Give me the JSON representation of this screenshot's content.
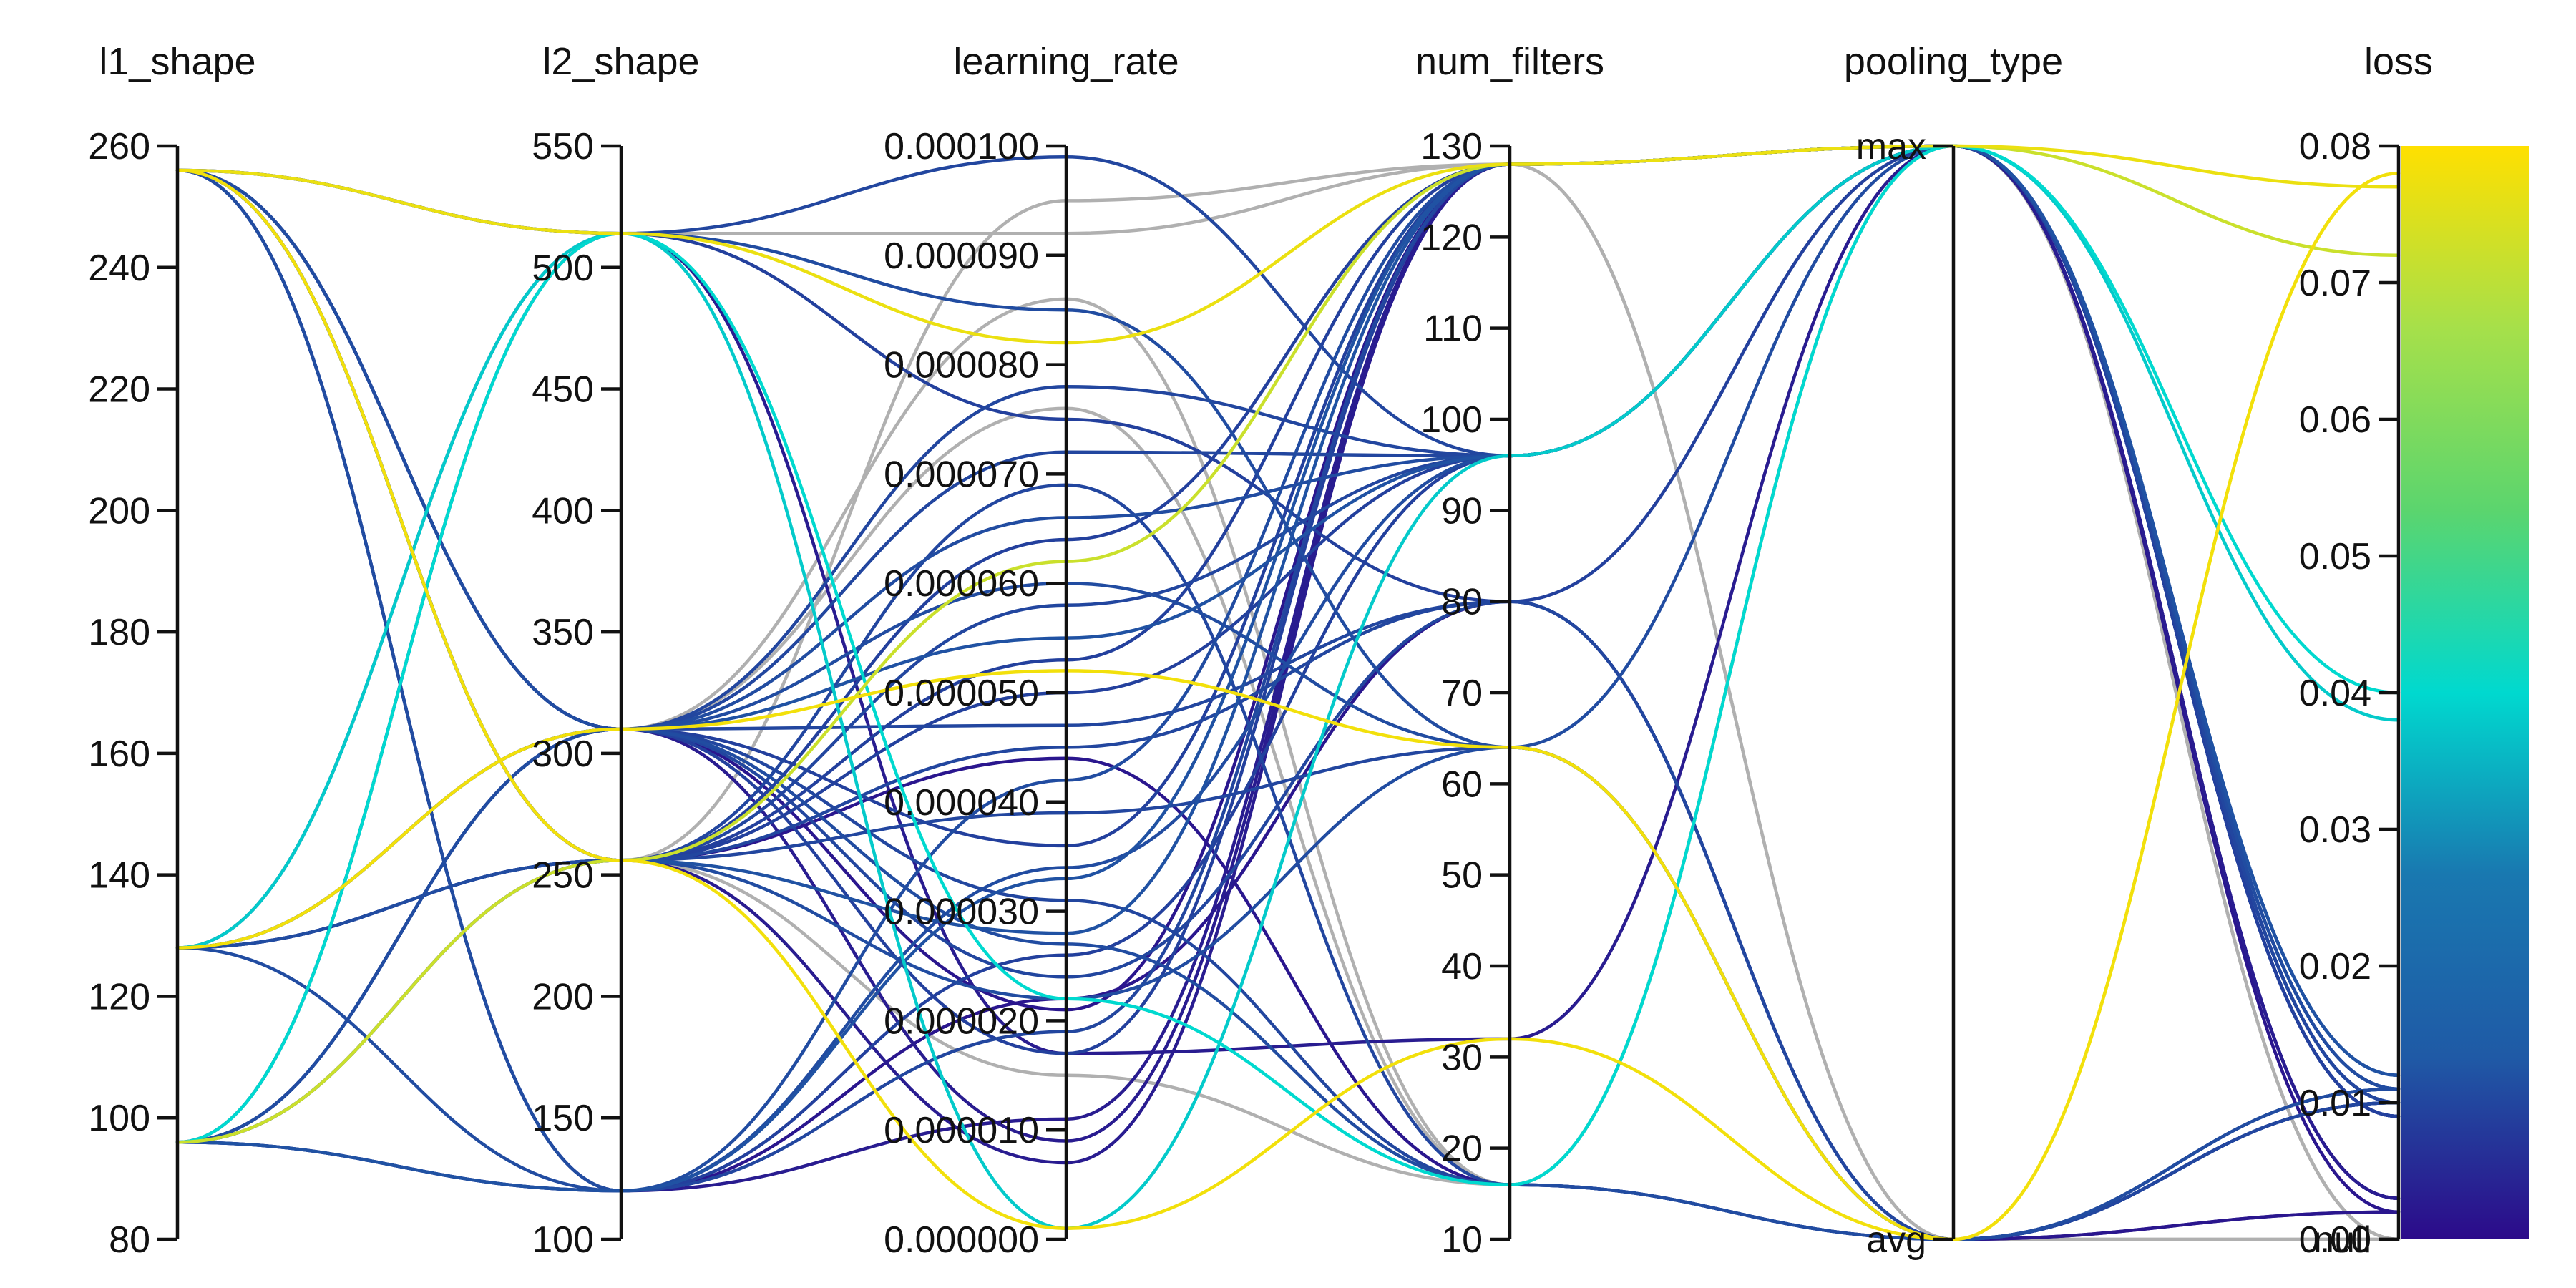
{
  "chart_data": {
    "type": "parallel_coordinates",
    "axes": [
      {
        "key": "l1_shape",
        "label": "l1_shape",
        "kind": "numeric",
        "range": [
          80,
          260
        ],
        "ticks": [
          {
            "v": 80,
            "t": "80"
          },
          {
            "v": 100,
            "t": "100"
          },
          {
            "v": 120,
            "t": "120"
          },
          {
            "v": 140,
            "t": "140"
          },
          {
            "v": 160,
            "t": "160"
          },
          {
            "v": 180,
            "t": "180"
          },
          {
            "v": 200,
            "t": "200"
          },
          {
            "v": 220,
            "t": "220"
          },
          {
            "v": 240,
            "t": "240"
          },
          {
            "v": 260,
            "t": "260"
          }
        ]
      },
      {
        "key": "l2_shape",
        "label": "l2_shape",
        "kind": "numeric",
        "range": [
          100,
          550
        ],
        "ticks": [
          {
            "v": 100,
            "t": "100"
          },
          {
            "v": 150,
            "t": "150"
          },
          {
            "v": 200,
            "t": "200"
          },
          {
            "v": 250,
            "t": "250"
          },
          {
            "v": 300,
            "t": "300"
          },
          {
            "v": 350,
            "t": "350"
          },
          {
            "v": 400,
            "t": "400"
          },
          {
            "v": 450,
            "t": "450"
          },
          {
            "v": 500,
            "t": "500"
          },
          {
            "v": 550,
            "t": "550"
          }
        ]
      },
      {
        "key": "learning_rate",
        "label": "learning_rate",
        "kind": "numeric",
        "range": [
          0,
          0.0001
        ],
        "ticks": [
          {
            "v": 0,
            "t": "0.000000"
          },
          {
            "v": 1e-05,
            "t": "0.000010"
          },
          {
            "v": 2e-05,
            "t": "0.000020"
          },
          {
            "v": 3e-05,
            "t": "0.000030"
          },
          {
            "v": 4e-05,
            "t": "0.000040"
          },
          {
            "v": 5e-05,
            "t": "0.000050"
          },
          {
            "v": 6e-05,
            "t": "0.000060"
          },
          {
            "v": 7e-05,
            "t": "0.000070"
          },
          {
            "v": 8e-05,
            "t": "0.000080"
          },
          {
            "v": 9e-05,
            "t": "0.000090"
          },
          {
            "v": 0.0001,
            "t": "0.000100"
          }
        ]
      },
      {
        "key": "num_filters",
        "label": "num_filters",
        "kind": "numeric",
        "range": [
          10,
          130
        ],
        "ticks": [
          {
            "v": 10,
            "t": "10"
          },
          {
            "v": 20,
            "t": "20"
          },
          {
            "v": 30,
            "t": "30"
          },
          {
            "v": 40,
            "t": "40"
          },
          {
            "v": 50,
            "t": "50"
          },
          {
            "v": 60,
            "t": "60"
          },
          {
            "v": 70,
            "t": "70"
          },
          {
            "v": 80,
            "t": "80"
          },
          {
            "v": 90,
            "t": "90"
          },
          {
            "v": 100,
            "t": "100"
          },
          {
            "v": 110,
            "t": "110"
          },
          {
            "v": 120,
            "t": "120"
          },
          {
            "v": 130,
            "t": "130"
          }
        ]
      },
      {
        "key": "pooling_type",
        "label": "pooling_type",
        "kind": "categorical",
        "range": [
          0,
          1
        ],
        "ticks": [
          {
            "v": 0,
            "t": "avg"
          },
          {
            "v": 1,
            "t": "max"
          }
        ]
      },
      {
        "key": "loss",
        "label": "loss",
        "kind": "loss",
        "range": [
          0,
          0.08
        ],
        "null_label": "null",
        "ticks": [
          {
            "v": 0,
            "t": "0.00"
          },
          {
            "v": 0.01,
            "t": "0.01"
          },
          {
            "v": 0.02,
            "t": "0.02"
          },
          {
            "v": 0.03,
            "t": "0.03"
          },
          {
            "v": 0.04,
            "t": "0.04"
          },
          {
            "v": 0.05,
            "t": "0.05"
          },
          {
            "v": 0.06,
            "t": "0.06"
          },
          {
            "v": 0.07,
            "t": "0.07"
          },
          {
            "v": 0.08,
            "t": "0.08"
          }
        ]
      }
    ],
    "colorbar": {
      "range": [
        0,
        0.08
      ],
      "colormap": "viridis-like",
      "stops": [
        "#2c0a8a",
        "#1f5aa6",
        "#1978b0",
        "#00d9cf",
        "#5bd56e",
        "#a6e04a",
        "#ffe000"
      ]
    },
    "null_color": "#b0b0b0",
    "series": [
      {
        "l1_shape": 256,
        "l2_shape": 514,
        "learning_rate": 8.2e-05,
        "num_filters": 128,
        "pooling_type": 1,
        "loss": 0.077
      },
      {
        "l1_shape": 96,
        "l2_shape": 256,
        "learning_rate": 6.2e-05,
        "num_filters": 128,
        "pooling_type": 1,
        "loss": 0.072
      },
      {
        "l1_shape": 128,
        "l2_shape": 310,
        "learning_rate": 5.2e-05,
        "num_filters": 64,
        "pooling_type": 0,
        "loss": 0.078
      },
      {
        "l1_shape": 256,
        "l2_shape": 256,
        "learning_rate": 1e-06,
        "num_filters": 32,
        "pooling_type": 0,
        "loss": 0.078
      },
      {
        "l1_shape": 128,
        "l2_shape": 514,
        "learning_rate": 1e-06,
        "num_filters": 96,
        "pooling_type": 1,
        "loss": 0.038
      },
      {
        "l1_shape": 96,
        "l2_shape": 514,
        "learning_rate": 2.2e-05,
        "num_filters": 16,
        "pooling_type": 1,
        "loss": 0.04
      },
      {
        "l1_shape": 256,
        "l2_shape": 310,
        "learning_rate": 9e-06,
        "num_filters": 128,
        "pooling_type": 1,
        "loss": 0.003
      },
      {
        "l1_shape": 96,
        "l2_shape": 514,
        "learning_rate": 1.7e-05,
        "num_filters": 32,
        "pooling_type": 1,
        "loss": 0.003
      },
      {
        "l1_shape": 128,
        "l2_shape": 256,
        "learning_rate": 4.4e-05,
        "num_filters": 16,
        "pooling_type": 0,
        "loss": 0.002
      },
      {
        "l1_shape": 256,
        "l2_shape": 120,
        "learning_rate": 1.1e-05,
        "num_filters": 128,
        "pooling_type": 1,
        "loss": 0.003
      },
      {
        "l1_shape": 96,
        "l2_shape": 120,
        "learning_rate": 2.2e-05,
        "num_filters": 80,
        "pooling_type": 0,
        "loss": 0.002
      },
      {
        "l1_shape": 256,
        "l2_shape": 310,
        "learning_rate": 2.1e-05,
        "num_filters": 128,
        "pooling_type": 1,
        "loss": 0.002
      },
      {
        "l1_shape": 96,
        "l2_shape": 256,
        "learning_rate": 7e-06,
        "num_filters": 128,
        "pooling_type": 1,
        "loss": 0.003
      },
      {
        "l1_shape": 256,
        "l2_shape": 514,
        "learning_rate": 9.9e-05,
        "num_filters": 96,
        "pooling_type": 1,
        "loss": 0.01
      },
      {
        "l1_shape": 256,
        "l2_shape": 514,
        "learning_rate": 8.5e-05,
        "num_filters": 64,
        "pooling_type": 0,
        "loss": 0.011
      },
      {
        "l1_shape": 128,
        "l2_shape": 514,
        "learning_rate": 7.5e-05,
        "num_filters": 80,
        "pooling_type": 1,
        "loss": 0.009
      },
      {
        "l1_shape": 96,
        "l2_shape": 310,
        "learning_rate": 7.2e-05,
        "num_filters": 96,
        "pooling_type": 1,
        "loss": 0.01
      },
      {
        "l1_shape": 256,
        "l2_shape": 310,
        "learning_rate": 6.6e-05,
        "num_filters": 96,
        "pooling_type": 1,
        "loss": 0.011
      },
      {
        "l1_shape": 128,
        "l2_shape": 256,
        "learning_rate": 6.4e-05,
        "num_filters": 128,
        "pooling_type": 1,
        "loss": 0.009
      },
      {
        "l1_shape": 256,
        "l2_shape": 256,
        "learning_rate": 5.8e-05,
        "num_filters": 96,
        "pooling_type": 1,
        "loss": 0.01
      },
      {
        "l1_shape": 128,
        "l2_shape": 310,
        "learning_rate": 5.5e-05,
        "num_filters": 96,
        "pooling_type": 1,
        "loss": 0.012
      },
      {
        "l1_shape": 96,
        "l2_shape": 256,
        "learning_rate": 5e-05,
        "num_filters": 96,
        "pooling_type": 1,
        "loss": 0.009
      },
      {
        "l1_shape": 256,
        "l2_shape": 310,
        "learning_rate": 4.7e-05,
        "num_filters": 80,
        "pooling_type": 0,
        "loss": 0.01
      },
      {
        "l1_shape": 128,
        "l2_shape": 120,
        "learning_rate": 4.2e-05,
        "num_filters": 128,
        "pooling_type": 1,
        "loss": 0.011
      },
      {
        "l1_shape": 256,
        "l2_shape": 256,
        "learning_rate": 3.9e-05,
        "num_filters": 64,
        "pooling_type": 0,
        "loss": 0.01
      },
      {
        "l1_shape": 96,
        "l2_shape": 310,
        "learning_rate": 3.6e-05,
        "num_filters": 128,
        "pooling_type": 1,
        "loss": 0.009
      },
      {
        "l1_shape": 256,
        "l2_shape": 120,
        "learning_rate": 3.4e-05,
        "num_filters": 96,
        "pooling_type": 1,
        "loss": 0.011
      },
      {
        "l1_shape": 128,
        "l2_shape": 310,
        "learning_rate": 3.1e-05,
        "num_filters": 16,
        "pooling_type": 0,
        "loss": 0.01
      },
      {
        "l1_shape": 256,
        "l2_shape": 256,
        "learning_rate": 2.8e-05,
        "num_filters": 128,
        "pooling_type": 1,
        "loss": 0.012
      },
      {
        "l1_shape": 96,
        "l2_shape": 120,
        "learning_rate": 2.6e-05,
        "num_filters": 96,
        "pooling_type": 1,
        "loss": 0.009
      },
      {
        "l1_shape": 256,
        "l2_shape": 310,
        "learning_rate": 2.4e-05,
        "num_filters": 80,
        "pooling_type": 0,
        "loss": 0.01
      },
      {
        "l1_shape": 128,
        "l2_shape": 256,
        "learning_rate": 2.2e-05,
        "num_filters": 64,
        "pooling_type": 0,
        "loss": 0.011
      },
      {
        "l1_shape": 256,
        "l2_shape": 120,
        "learning_rate": 1.9e-05,
        "num_filters": 128,
        "pooling_type": 1,
        "loss": 0.01
      },
      {
        "l1_shape": 96,
        "l2_shape": 310,
        "learning_rate": 1.7e-05,
        "num_filters": 128,
        "pooling_type": 1,
        "loss": 0.009
      },
      {
        "l1_shape": 256,
        "l2_shape": 256,
        "learning_rate": 6.9e-05,
        "num_filters": 16,
        "pooling_type": 0,
        "loss": 0.01
      },
      {
        "l1_shape": 128,
        "l2_shape": 310,
        "learning_rate": 6e-05,
        "num_filters": 64,
        "pooling_type": 1,
        "loss": 0.011
      },
      {
        "l1_shape": 256,
        "l2_shape": 256,
        "learning_rate": 4.5e-05,
        "num_filters": 80,
        "pooling_type": 0,
        "loss": 0.01
      },
      {
        "l1_shape": 96,
        "l2_shape": 120,
        "learning_rate": 3.3e-05,
        "num_filters": 128,
        "pooling_type": 1,
        "loss": 0.012
      },
      {
        "l1_shape": 256,
        "l2_shape": 310,
        "learning_rate": 7.8e-05,
        "num_filters": 96,
        "pooling_type": 1,
        "loss": 0.01
      },
      {
        "l1_shape": 128,
        "l2_shape": 256,
        "learning_rate": 5.3e-05,
        "num_filters": 128,
        "pooling_type": 1,
        "loss": 0.009
      },
      {
        "l1_shape": 96,
        "l2_shape": 310,
        "learning_rate": 2.7e-05,
        "num_filters": 16,
        "pooling_type": 0,
        "loss": 0.011
      },
      {
        "l1_shape": 256,
        "l2_shape": 514,
        "learning_rate": 9.2e-05,
        "num_filters": 128,
        "pooling_type": 0,
        "loss": null
      },
      {
        "l1_shape": 96,
        "l2_shape": 310,
        "learning_rate": 8.6e-05,
        "num_filters": 16,
        "pooling_type": 1,
        "loss": null
      },
      {
        "l1_shape": 256,
        "l2_shape": 256,
        "learning_rate": 1.5e-05,
        "num_filters": 16,
        "pooling_type": 1,
        "loss": null
      },
      {
        "l1_shape": 96,
        "l2_shape": 256,
        "learning_rate": 9.5e-05,
        "num_filters": 128,
        "pooling_type": 0,
        "loss": null
      },
      {
        "l1_shape": 256,
        "l2_shape": 310,
        "learning_rate": 7.6e-05,
        "num_filters": 16,
        "pooling_type": 1,
        "loss": null
      }
    ]
  }
}
